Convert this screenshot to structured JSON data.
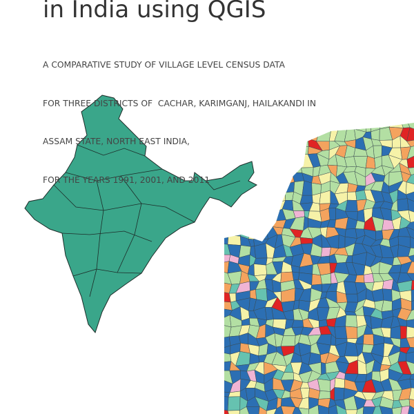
{
  "header": {
    "title": "in India using QGIS",
    "subtitle": [
      "A COMPARATIVE STUDY OF VILLAGE LEVEL CENSUS DATA",
      "FOR THREE DISTRICTS OF  CACHAR, KARIMGANJ, HAILAKANDI IN",
      "ASSAM STATE, NORTH EAST INDIA,",
      "FOR THE YEARS 1991, 2001, AND 2011"
    ]
  }
}
